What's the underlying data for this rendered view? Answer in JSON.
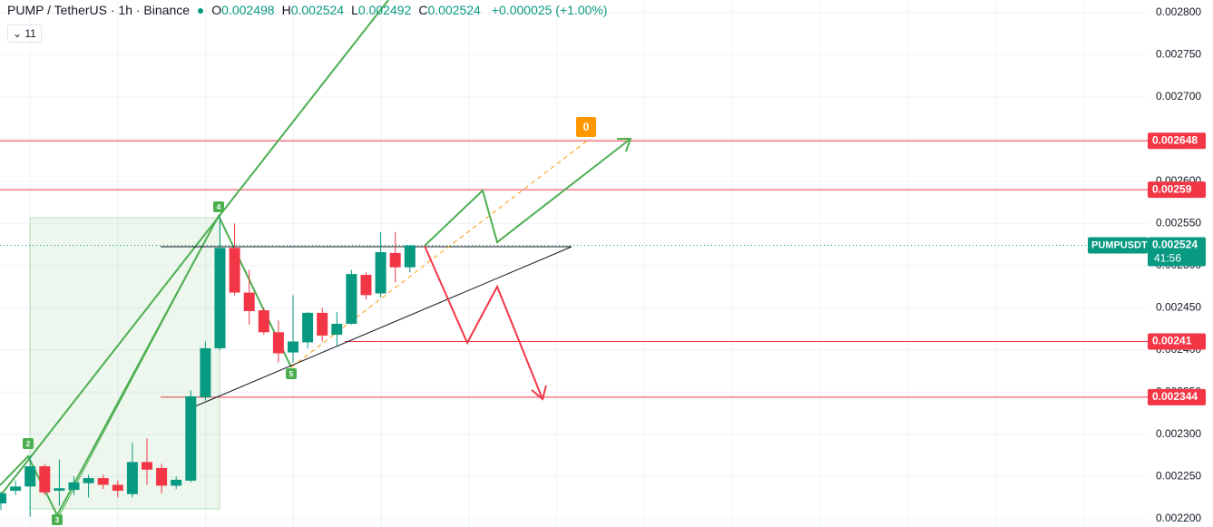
{
  "header": {
    "ohlc": [
      {
        "key": "O",
        "value": "0.002498"
      },
      {
        "key": "H",
        "value": "0.002524"
      },
      {
        "key": "L",
        "value": "0.002492"
      },
      {
        "key": "C",
        "value": "0.002524"
      }
    ],
    "change": "+0.000025 (+1.00%)",
    "indicator_count": "11"
  },
  "chart_data": {
    "type": "candlestick",
    "title": "PUMP / TetherUS · 1h · Binance",
    "open": [
      0.002218,
      0.002233,
      0.002238,
      0.002262,
      0.002233,
      0.002234,
      0.002242,
      0.002248,
      0.00224,
      0.002229,
      0.002267,
      0.00226,
      0.002239,
      0.002245,
      0.002344,
      0.002402,
      0.002521,
      0.002468,
      0.002447,
      0.002421,
      0.002397,
      0.002409,
      0.002444,
      0.002418,
      0.002431,
      0.002489,
      0.002467,
      0.002515,
      0.002498
    ],
    "high": [
      0.002232,
      0.002245,
      0.002275,
      0.002265,
      0.00227,
      0.00225,
      0.002252,
      0.002252,
      0.002245,
      0.00229,
      0.002295,
      0.002265,
      0.00225,
      0.002352,
      0.00241,
      0.002558,
      0.00255,
      0.002495,
      0.00245,
      0.002435,
      0.002465,
      0.002445,
      0.00245,
      0.002445,
      0.002495,
      0.002492,
      0.00254,
      0.00254,
      0.002524
    ],
    "low": [
      0.00221,
      0.002228,
      0.002202,
      0.002228,
      0.002215,
      0.002228,
      0.002225,
      0.002235,
      0.002225,
      0.002225,
      0.00224,
      0.00223,
      0.002235,
      0.002243,
      0.00234,
      0.0024,
      0.002465,
      0.00243,
      0.002418,
      0.002385,
      0.002385,
      0.002402,
      0.00241,
      0.002405,
      0.00243,
      0.00246,
      0.002462,
      0.00248,
      0.002492
    ],
    "close": [
      0.00223,
      0.002238,
      0.002262,
      0.002231,
      0.002236,
      0.002243,
      0.002248,
      0.00224,
      0.002233,
      0.002267,
      0.002258,
      0.002239,
      0.002246,
      0.002345,
      0.002402,
      0.002521,
      0.002468,
      0.002446,
      0.002421,
      0.002396,
      0.00241,
      0.002444,
      0.002417,
      0.002431,
      0.00249,
      0.002465,
      0.002516,
      0.002498,
      0.002524
    ],
    "up_color": "#089981",
    "down_color": "#f23645",
    "ylim": [
      0.00219,
      0.002815
    ],
    "yticks": [
      {
        "value": 0.0022,
        "label": "0.002200"
      },
      {
        "value": 0.00225,
        "label": "0.002250"
      },
      {
        "value": 0.0023,
        "label": "0.002300"
      },
      {
        "value": 0.00235,
        "label": "0.002350"
      },
      {
        "value": 0.0024,
        "label": "0.002400"
      },
      {
        "value": 0.00245,
        "label": "0.002450"
      },
      {
        "value": 0.0025,
        "label": "0.002500"
      },
      {
        "value": 0.00255,
        "label": "0.002550"
      },
      {
        "value": 0.0026,
        "label": "0.002600"
      },
      {
        "value": 0.00265,
        "label": "0.002650"
      },
      {
        "value": 0.0027,
        "label": "0.002700"
      },
      {
        "value": 0.00275,
        "label": "0.002750"
      },
      {
        "value": 0.0028,
        "label": "0.002800"
      }
    ],
    "grid": true,
    "levels": [
      0.002648,
      0.00259,
      0.00241,
      0.002344
    ],
    "level_color": "#f23645",
    "last_price": {
      "symbol": "PUMPUSDT",
      "value": 0.002524,
      "countdown": "41:56"
    },
    "annotations": [
      "2",
      "3",
      "4",
      "5",
      "0"
    ]
  }
}
